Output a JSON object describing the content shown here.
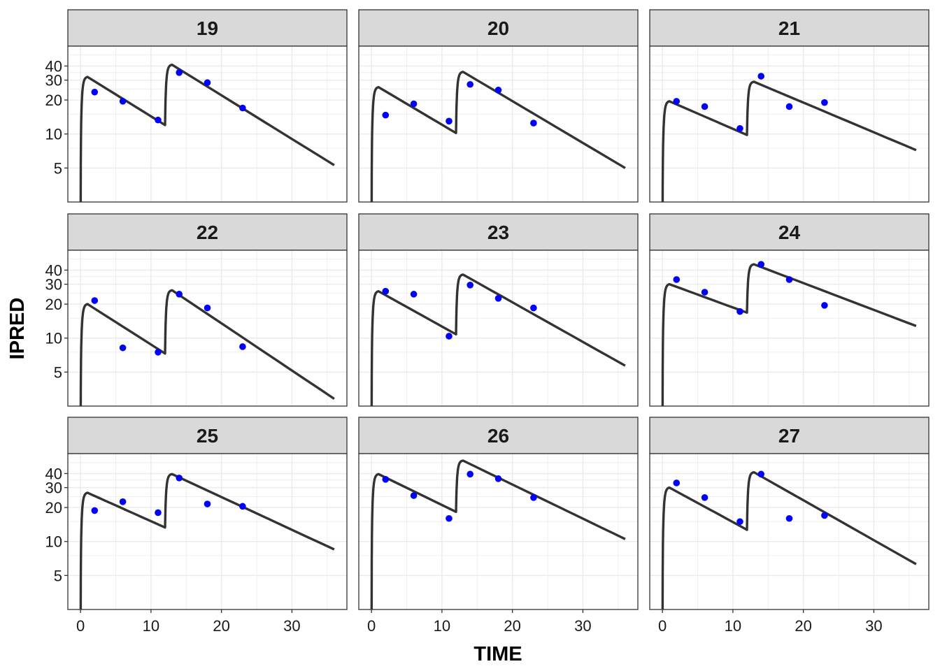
{
  "chart_data": {
    "type": "line",
    "layout": "facet-grid 3x3",
    "xlabel": "TIME",
    "ylabel": "IPRED",
    "y_scale": "log",
    "xlim": [
      -1.8,
      37.8
    ],
    "ylim": [
      2.5,
      60
    ],
    "x_ticks": [
      0,
      10,
      20,
      30
    ],
    "x_tick_labels": [
      "0",
      "10",
      "20",
      "30"
    ],
    "y_ticks": [
      5,
      10,
      20,
      30,
      40
    ],
    "y_tick_labels": [
      "5",
      "10",
      "20",
      "30",
      "40"
    ],
    "grid": true,
    "colors": {
      "line": "#333333",
      "points": "#0000ff",
      "strip": "#d9d9d9",
      "grid": "#ebebeb"
    },
    "panels": [
      {
        "id": "19",
        "line_x": [
          0,
          1,
          12,
          13,
          36
        ],
        "line_y": [
          0.5,
          32,
          12,
          41,
          5.3
        ],
        "obs_x": [
          2,
          6,
          11,
          14,
          18,
          23
        ],
        "obs_y": [
          23.5,
          19.5,
          13.3,
          35,
          28.5,
          17
        ]
      },
      {
        "id": "20",
        "line_x": [
          0,
          1,
          12,
          13,
          36
        ],
        "line_y": [
          0.5,
          26,
          10.2,
          35.5,
          5
        ],
        "obs_x": [
          2,
          6,
          11,
          14,
          18,
          23
        ],
        "obs_y": [
          14.7,
          18.5,
          13,
          27.5,
          24.5,
          12.5
        ]
      },
      {
        "id": "21",
        "line_x": [
          0,
          1,
          12,
          13,
          36
        ],
        "line_y": [
          0.5,
          19.5,
          9.8,
          29,
          7.2
        ],
        "obs_x": [
          2,
          6,
          11,
          14,
          18,
          23
        ],
        "obs_y": [
          19.5,
          17.5,
          11.2,
          32.5,
          17.5,
          19
        ]
      },
      {
        "id": "22",
        "line_x": [
          0,
          1,
          12,
          13,
          36
        ],
        "line_y": [
          0.5,
          20,
          7.3,
          26.5,
          2.9
        ],
        "obs_x": [
          2,
          6,
          11,
          14,
          18,
          23
        ],
        "obs_y": [
          21.5,
          8.2,
          7.5,
          24.5,
          18.5,
          8.4
        ]
      },
      {
        "id": "23",
        "line_x": [
          0,
          1,
          12,
          13,
          36
        ],
        "line_y": [
          0.5,
          26,
          10.8,
          36.5,
          5.7
        ],
        "obs_x": [
          2,
          6,
          11,
          14,
          18,
          23
        ],
        "obs_y": [
          26,
          24.5,
          10.4,
          29.5,
          22.5,
          18.5
        ]
      },
      {
        "id": "24",
        "line_x": [
          0,
          1,
          12,
          13,
          36
        ],
        "line_y": [
          0.5,
          30,
          16.8,
          45,
          12.8
        ],
        "obs_x": [
          2,
          6,
          11,
          14,
          18,
          23
        ],
        "obs_y": [
          33,
          25.5,
          17.2,
          45,
          33,
          19.5
        ]
      },
      {
        "id": "25",
        "line_x": [
          0,
          1,
          12,
          13,
          36
        ],
        "line_y": [
          0.5,
          27,
          13.3,
          39.5,
          8.5
        ],
        "obs_x": [
          2,
          6,
          11,
          14,
          18,
          23
        ],
        "obs_y": [
          18.8,
          22.5,
          18,
          36.5,
          21.5,
          20.5
        ]
      },
      {
        "id": "26",
        "line_x": [
          0,
          1,
          12,
          13,
          36
        ],
        "line_y": [
          0.5,
          39.5,
          18.3,
          52,
          10.5
        ],
        "obs_x": [
          2,
          6,
          11,
          14,
          18,
          23
        ],
        "obs_y": [
          35.5,
          25.5,
          16,
          39.5,
          36,
          24.5
        ]
      },
      {
        "id": "27",
        "line_x": [
          0,
          1,
          12,
          13,
          36
        ],
        "line_y": [
          0.5,
          30,
          12.7,
          41,
          6.3
        ],
        "obs_x": [
          2,
          6,
          11,
          14,
          18,
          23
        ],
        "obs_y": [
          33,
          24.5,
          15,
          39.5,
          16,
          17
        ]
      }
    ]
  }
}
